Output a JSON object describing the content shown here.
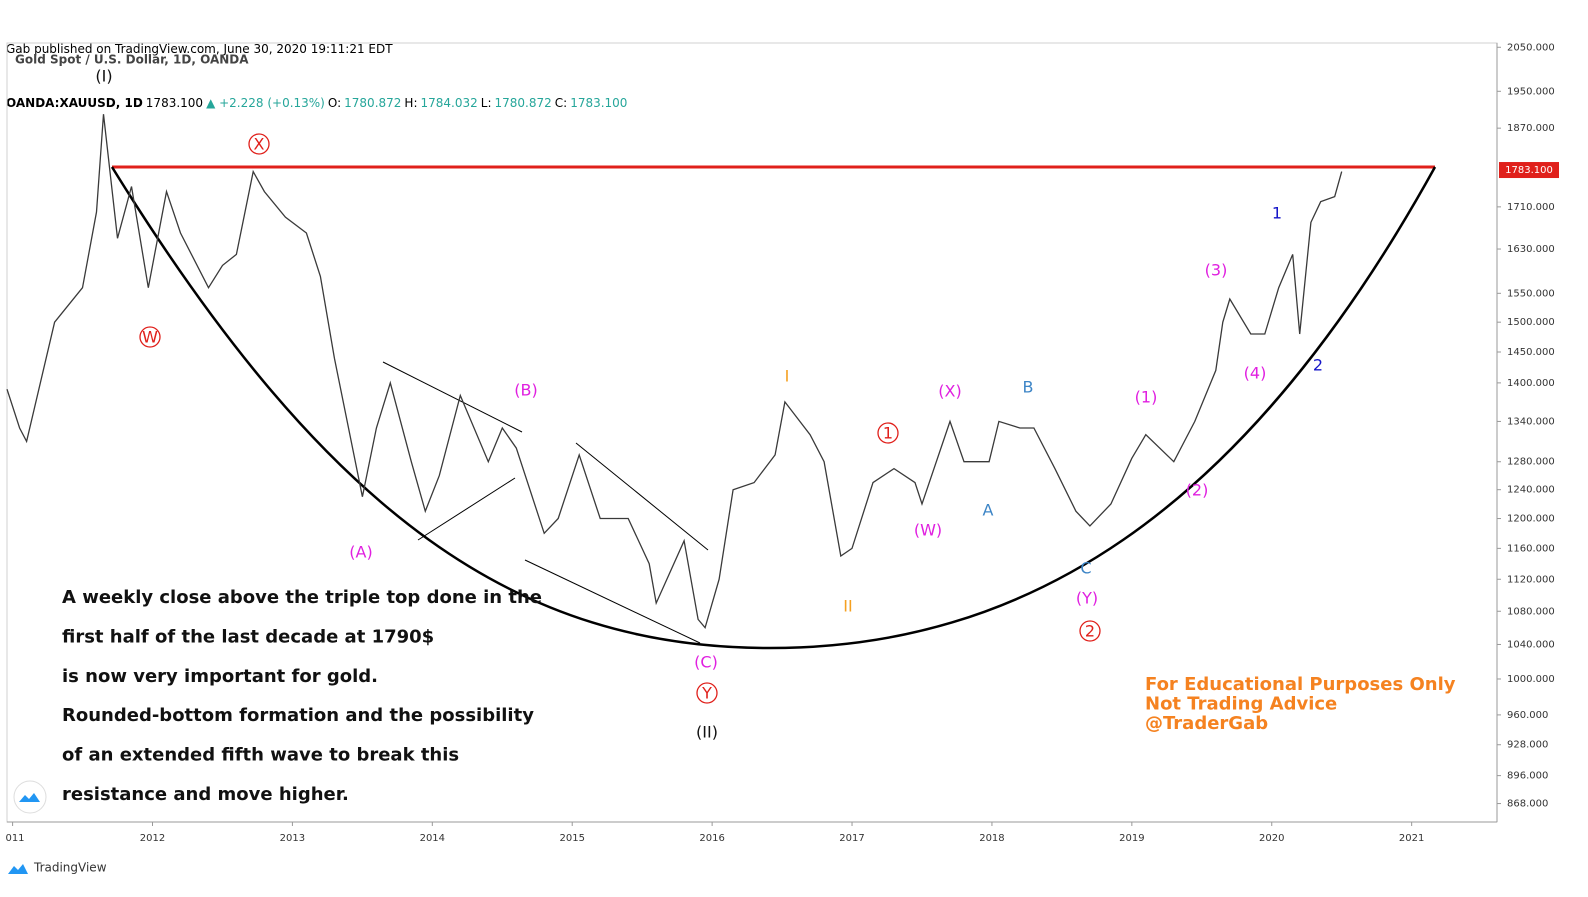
{
  "header": {
    "line1": "Gab published on TradingView.com, June 30, 2020 19:11:21 EDT",
    "line2": [
      {
        "text": "OANDA:XAUUSD, 1D",
        "color": "#000000"
      },
      {
        "text": "1783.100",
        "color": "#000000"
      },
      {
        "text": "▲ +2.228 (+0.13%)",
        "color": "#26a69a"
      },
      {
        "text": "O:",
        "color": "#000000"
      },
      {
        "text": "1780.872",
        "color": "#26a69a"
      },
      {
        "text": "H:",
        "color": "#000000"
      },
      {
        "text": "1784.032",
        "color": "#26a69a"
      },
      {
        "text": "L:",
        "color": "#000000"
      },
      {
        "text": "1780.872",
        "color": "#26a69a"
      },
      {
        "text": "C:",
        "color": "#000000"
      },
      {
        "text": "1783.100",
        "color": "#26a69a"
      }
    ]
  },
  "footer": {
    "brand": "TradingView"
  },
  "chart_data": {
    "type": "line",
    "title": "Gold Spot / U.S. Dollar, 1D, OANDA",
    "log_scale": true,
    "color": "#3a3a3a",
    "xlim": [
      2010.96,
      2021.61
    ],
    "xticks": [
      {
        "value": 2011,
        "label": "011"
      },
      2012,
      2013,
      2014,
      2015,
      2016,
      2017,
      2018,
      2019,
      2020,
      2021
    ],
    "ylim": [
      850,
      2060
    ],
    "yticks": [
      {
        "value": 2050,
        "label": "2050.000"
      },
      {
        "value": 1950,
        "label": "1950.000"
      },
      {
        "value": 1870,
        "label": "1870.000"
      },
      {
        "value": 1710,
        "label": "1710.000"
      },
      {
        "value": 1630,
        "label": "1630.000"
      },
      {
        "value": 1550,
        "label": "1550.000"
      },
      {
        "value": 1500,
        "label": "1500.000"
      },
      {
        "value": 1450,
        "label": "1450.000"
      },
      {
        "value": 1400,
        "label": "1400.000"
      },
      {
        "value": 1340,
        "label": "1340.000"
      },
      {
        "value": 1280,
        "label": "1280.000"
      },
      {
        "value": 1240,
        "label": "1240.000"
      },
      {
        "value": 1200,
        "label": "1200.000"
      },
      {
        "value": 1160,
        "label": "1160.000"
      },
      {
        "value": 1120,
        "label": "1120.000"
      },
      {
        "value": 1080,
        "label": "1080.000"
      },
      {
        "value": 1040,
        "label": "1040.000"
      },
      {
        "value": 1000,
        "label": "1000.000"
      },
      {
        "value": 960,
        "label": "960.000"
      },
      {
        "value": 928,
        "label": "928.000"
      },
      {
        "value": 896,
        "label": "896.000"
      },
      {
        "value": 868,
        "label": "868.000"
      }
    ],
    "last_price": {
      "value": 1783.1,
      "label": "1783.100",
      "color": "#e0201b"
    },
    "x": [
      2010.96,
      2011.05,
      2011.1,
      2011.3,
      2011.5,
      2011.6,
      2011.65,
      2011.75,
      2011.85,
      2011.97,
      2012.1,
      2012.2,
      2012.4,
      2012.5,
      2012.6,
      2012.72,
      2012.8,
      2012.95,
      2013.1,
      2013.2,
      2013.3,
      2013.5,
      2013.6,
      2013.7,
      2013.85,
      2013.95,
      2014.05,
      2014.2,
      2014.4,
      2014.5,
      2014.6,
      2014.8,
      2014.9,
      2015.05,
      2015.2,
      2015.4,
      2015.55,
      2015.6,
      2015.8,
      2015.9,
      2015.95,
      2016.05,
      2016.15,
      2016.3,
      2016.45,
      2016.52,
      2016.7,
      2016.8,
      2016.92,
      2017.0,
      2017.15,
      2017.3,
      2017.45,
      2017.5,
      2017.7,
      2017.8,
      2017.98,
      2018.05,
      2018.2,
      2018.3,
      2018.45,
      2018.6,
      2018.7,
      2018.85,
      2019.0,
      2019.1,
      2019.3,
      2019.45,
      2019.6,
      2019.65,
      2019.7,
      2019.85,
      2019.95,
      2020.05,
      2020.15,
      2020.2,
      2020.28,
      2020.35,
      2020.45,
      2020.5
    ],
    "series": [
      {
        "name": "XAUUSD",
        "values": [
          1390,
          1330,
          1310,
          1500,
          1560,
          1700,
          1900,
          1650,
          1750,
          1560,
          1740,
          1660,
          1560,
          1600,
          1620,
          1780,
          1740,
          1690,
          1660,
          1580,
          1440,
          1230,
          1330,
          1400,
          1280,
          1210,
          1260,
          1380,
          1280,
          1330,
          1300,
          1180,
          1200,
          1290,
          1200,
          1200,
          1140,
          1090,
          1170,
          1070,
          1060,
          1120,
          1240,
          1250,
          1290,
          1370,
          1320,
          1280,
          1150,
          1160,
          1250,
          1270,
          1250,
          1220,
          1340,
          1280,
          1280,
          1340,
          1330,
          1330,
          1270,
          1210,
          1190,
          1220,
          1285,
          1320,
          1280,
          1340,
          1420,
          1500,
          1540,
          1480,
          1480,
          1560,
          1620,
          1480,
          1680,
          1720,
          1730,
          1780
        ]
      }
    ],
    "annotations": [
      {
        "text": "(I)",
        "color": "#111111"
      },
      {
        "text": "X",
        "color": "#e0201b",
        "circled": true
      },
      {
        "text": "W",
        "color": "#e0201b",
        "circled": true
      },
      {
        "text": "(A)",
        "color": "#e020e0"
      },
      {
        "text": "(B)",
        "color": "#e020e0"
      },
      {
        "text": "(C)",
        "color": "#e020e0"
      },
      {
        "text": "Y",
        "color": "#e0201b",
        "circled": true
      },
      {
        "text": "(II)",
        "color": "#111111"
      },
      {
        "text": "I",
        "color": "#f5a020"
      },
      {
        "text": "II",
        "color": "#f5a020"
      },
      {
        "text": "1",
        "color": "#e0201b",
        "circled": true
      },
      {
        "text": "(W)",
        "color": "#e020e0"
      },
      {
        "text": "(X)",
        "color": "#e020e0"
      },
      {
        "text": "A",
        "color": "#3d85c6"
      },
      {
        "text": "B",
        "color": "#3d85c6"
      },
      {
        "text": "C",
        "color": "#3d85c6"
      },
      {
        "text": "(Y)",
        "color": "#e020e0"
      },
      {
        "text": "2",
        "color": "#e0201b",
        "circled": true
      },
      {
        "text": "(1)",
        "color": "#e020e0"
      },
      {
        "text": "(2)",
        "color": "#e020e0"
      },
      {
        "text": "(3)",
        "color": "#e020e0"
      },
      {
        "text": "(4)",
        "color": "#e020e0"
      },
      {
        "text": "1",
        "color": "#1515c8"
      },
      {
        "text": "2",
        "color": "#1515c8"
      }
    ],
    "note": [
      "A weekly close above the triple top done in the",
      "first half of the last decade at 1790$",
      " is now very important for gold.",
      "Rounded-bottom formation and the possibility",
      "of an extended fifth wave to break this",
      "resistance and move higher."
    ],
    "disclaimer": [
      "For Educational Purposes Only",
      "Not Trading Advice",
      "@TraderGab"
    ]
  }
}
